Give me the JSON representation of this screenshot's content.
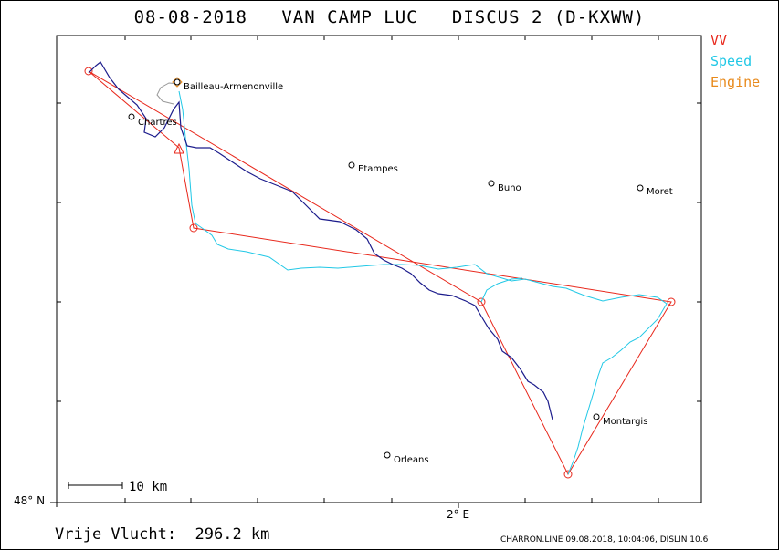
{
  "header": {
    "title": "08-08-2018   VAN CAMP LUC   DISCUS 2 (D-KXWW)"
  },
  "legend": {
    "vv": "VV",
    "speed": "Speed",
    "engine": "Engine"
  },
  "axes": {
    "lat_label": "48° N",
    "lon_label": "2° E"
  },
  "scale": {
    "label": "10 km"
  },
  "distance": {
    "label": "Vrije Vlucht:  296.2 km"
  },
  "footer": {
    "text": "CHARRON.LINE 09.08.2018, 10:04:06, DISLIN 10.6"
  },
  "towns": [
    {
      "name": "Bailleau-Armenonville"
    },
    {
      "name": "Chartres"
    },
    {
      "name": "Etampes"
    },
    {
      "name": "Buno"
    },
    {
      "name": "Moret"
    },
    {
      "name": "Montargis"
    },
    {
      "name": "Orleans"
    }
  ],
  "colors": {
    "task": "#e8281c",
    "vv_track": "#1c1c8c",
    "speed_track": "#21c8e6",
    "engine": "#e88a1c"
  }
}
